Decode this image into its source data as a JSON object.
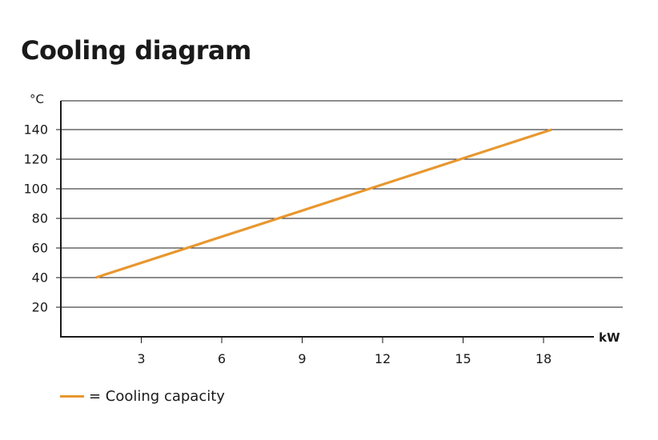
{
  "chart_data": {
    "type": "line",
    "title": "Cooling diagram",
    "ylabel": "°C",
    "xlabel": "kW",
    "xlim": [
      0,
      20.9
    ],
    "ylim": [
      0,
      160
    ],
    "x_ticks": [
      3,
      6,
      9,
      12,
      15,
      18
    ],
    "y_ticks": [
      20,
      40,
      60,
      80,
      100,
      120,
      140
    ],
    "grid": "horizontal",
    "legend_position": "bottom-left",
    "series": [
      {
        "name": "= Cooling capacity",
        "color": "#e8972f",
        "x": [
          1.3,
          18.3
        ],
        "y": [
          40,
          140
        ]
      }
    ]
  }
}
